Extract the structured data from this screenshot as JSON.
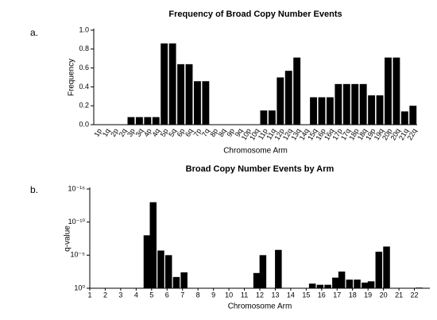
{
  "chart_data": [
    {
      "type": "bar",
      "panel_label": "a.",
      "title": "Frequency of Broad Copy Number Events",
      "x_label": "Chromosome Arm",
      "y_label": "Frequency",
      "color": "#000000",
      "categories": [
        "1p",
        "1q",
        "2p",
        "2q",
        "3p",
        "3q",
        "4p",
        "4q",
        "5p",
        "5q",
        "6p",
        "6q",
        "7p",
        "7q",
        "8p",
        "8q",
        "9p",
        "9q",
        "10p",
        "10q",
        "11p",
        "11q",
        "12p",
        "12q",
        "13q",
        "14q",
        "15q",
        "16p",
        "16q",
        "17p",
        "17q",
        "18p",
        "18q",
        "19p",
        "19q",
        "20p",
        "20q",
        "21q",
        "22q"
      ],
      "values": [
        0,
        0,
        0,
        0,
        0.08,
        0.08,
        0.08,
        0.08,
        0.86,
        0.86,
        0.64,
        0.64,
        0.46,
        0.46,
        0,
        0,
        0,
        0,
        0,
        0,
        0.15,
        0.15,
        0.5,
        0.57,
        0.71,
        0,
        0.29,
        0.29,
        0.29,
        0.43,
        0.43,
        0.43,
        0.43,
        0.31,
        0.31,
        0.71,
        0.71,
        0.14,
        0.2
      ],
      "ylim": [
        0,
        1
      ],
      "yticks": [
        {
          "value": 0,
          "label": "0.0"
        },
        0.2,
        0.4,
        0.6,
        0.8,
        {
          "value": 1,
          "label": "1.0"
        }
      ]
    },
    {
      "type": "bar",
      "panel_label": "b.",
      "title": "Broad Copy Number Events by Arm",
      "x_label": "Chromosome Arm",
      "y_label": "q-value",
      "color": "#000000",
      "ylog": true,
      "x": [
        4.7,
        5.1,
        5.6,
        6.1,
        6.6,
        7.1,
        11.8,
        12.2,
        13.2,
        15.4,
        15.9,
        16.4,
        16.9,
        17.3,
        17.8,
        18.3,
        18.8,
        19.2,
        19.7,
        20.2,
        22.3
      ],
      "values": [
        1e-08,
        1e-13,
        2e-06,
        1e-05,
        0.02,
        0.004,
        0.005,
        1e-05,
        1.6e-06,
        0.2,
        0.3,
        0.3,
        0.025,
        0.003,
        0.05,
        0.05,
        0.14,
        0.09,
        3e-06,
        5e-07,
        0.8
      ],
      "xlim": [
        1,
        23
      ],
      "xticks": [
        1,
        2,
        3,
        4,
        5,
        6,
        7,
        8,
        9,
        10,
        11,
        12,
        13,
        14,
        15,
        16,
        17,
        18,
        19,
        20,
        21,
        22
      ],
      "ylim": [
        1,
        1e-15
      ],
      "yticks": [
        {
          "value": 1,
          "label": "10⁰"
        },
        {
          "value": 1e-05,
          "label": "10⁻⁵"
        },
        {
          "value": 1e-10,
          "label": "10⁻¹⁰"
        },
        {
          "value": 1e-15,
          "label": "10⁻¹⁵"
        }
      ]
    }
  ]
}
